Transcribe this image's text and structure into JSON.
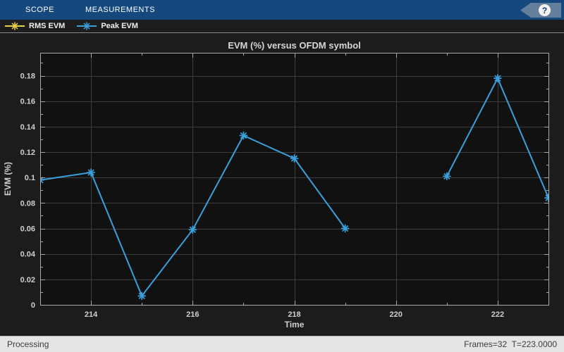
{
  "toolbar": {
    "tabs": [
      {
        "label": "SCOPE"
      },
      {
        "label": "MEASUREMENTS"
      }
    ],
    "help_glyph": "?",
    "background": "#15497e"
  },
  "legend": {
    "items": [
      {
        "label": "RMS EVM",
        "color": "#e9d24a"
      },
      {
        "label": "Peak EVM",
        "color": "#3aa0dc"
      }
    ]
  },
  "chart_data": {
    "type": "line",
    "title": "EVM (%) versus OFDM symbol",
    "xlabel": "Time",
    "ylabel": "EVM (%)",
    "xlim": [
      213,
      223
    ],
    "ylim": [
      0,
      0.198
    ],
    "x_major_ticks": [
      214,
      216,
      218,
      220,
      222
    ],
    "y_major_ticks": [
      0,
      0.02,
      0.04,
      0.06,
      0.08,
      0.1,
      0.12,
      0.14,
      0.16,
      0.18
    ],
    "grid": true,
    "legend_position": "top-strip",
    "plot_background": "#111111",
    "grid_color": "#3d3d3d",
    "axis_color": "#a8a8a8",
    "label_color": "#cfcfcf",
    "title_color": "#d6d6d6",
    "series": [
      {
        "name": "Peak EVM",
        "color": "#3aa0dc",
        "marker": "asterisk",
        "x": [
          213,
          214,
          215,
          216,
          217,
          218,
          219,
          220,
          221,
          222,
          223
        ],
        "y": [
          0.098,
          0.104,
          0.007,
          0.059,
          0.133,
          0.115,
          0.06,
          null,
          0.101,
          0.178,
          0.084
        ]
      }
    ]
  },
  "status_bar": {
    "left": "Processing",
    "right": "Frames=32  T=223.0000"
  }
}
